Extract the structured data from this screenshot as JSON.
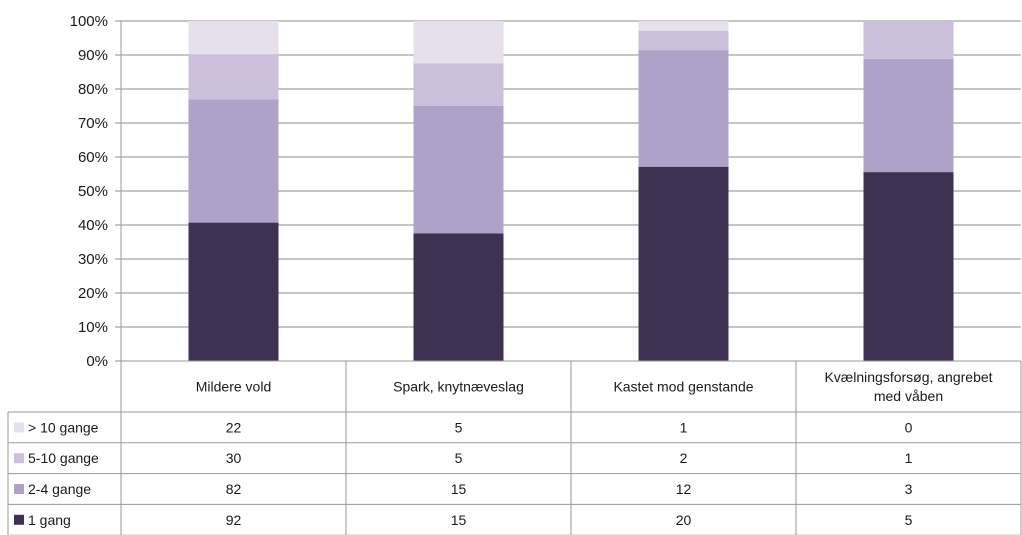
{
  "chart_data": {
    "type": "bar",
    "stacked": true,
    "normalized": true,
    "title": "",
    "xlabel": "",
    "ylabel": "",
    "ylim": [
      0,
      100
    ],
    "yticks": [
      "0%",
      "10%",
      "20%",
      "30%",
      "40%",
      "50%",
      "60%",
      "70%",
      "80%",
      "90%",
      "100%"
    ],
    "grid": "horizontal",
    "legend": "data-table-left",
    "categories": [
      "Mildere vold",
      "Spark, knytnæveslag",
      "Kastet mod genstande",
      "Kvælningsforsøg, angrebet med våben"
    ],
    "category_lines": [
      [
        "Mildere vold"
      ],
      [
        "Spark, knytnæveslag"
      ],
      [
        "Kastet mod genstande"
      ],
      [
        "Kvælningsforsøg, angrebet",
        "med våben"
      ]
    ],
    "series": [
      {
        "name": "1 gang",
        "values": [
          92,
          15,
          20,
          5
        ],
        "color": "#3f3152"
      },
      {
        "name": "2-4 gange",
        "values": [
          82,
          15,
          12,
          3
        ],
        "color": "#b0a1c9"
      },
      {
        "name": "5-10 gange",
        "values": [
          30,
          5,
          2,
          1
        ],
        "color": "#cbbfdb"
      },
      {
        "name": "> 10 gange",
        "values": [
          22,
          5,
          1,
          0
        ],
        "color": "#e6e0ed"
      }
    ],
    "table_row_order": [
      "> 10 gange",
      "5-10 gange",
      "2-4 gange",
      "1 gang"
    ]
  }
}
